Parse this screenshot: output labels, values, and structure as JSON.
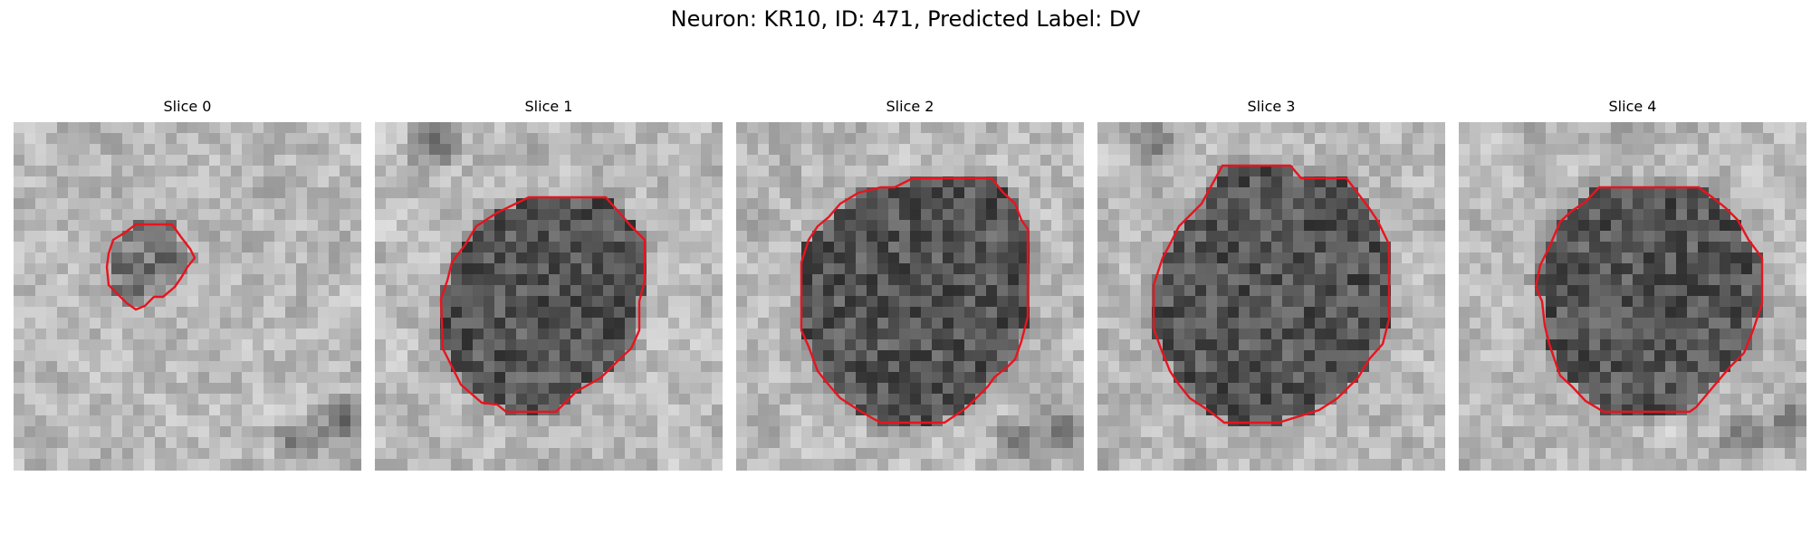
{
  "figure": {
    "title": "Neuron: KR10, ID: 471, Predicted Label: DV",
    "contour_color": "#e8141e",
    "colormap": "grayscale"
  },
  "panels": [
    {
      "title": "Slice 0",
      "contour_size": "small"
    },
    {
      "title": "Slice 1",
      "contour_size": "large"
    },
    {
      "title": "Slice 2",
      "contour_size": "large"
    },
    {
      "title": "Slice 3",
      "contour_size": "large"
    },
    {
      "title": "Slice 4",
      "contour_size": "large"
    }
  ]
}
